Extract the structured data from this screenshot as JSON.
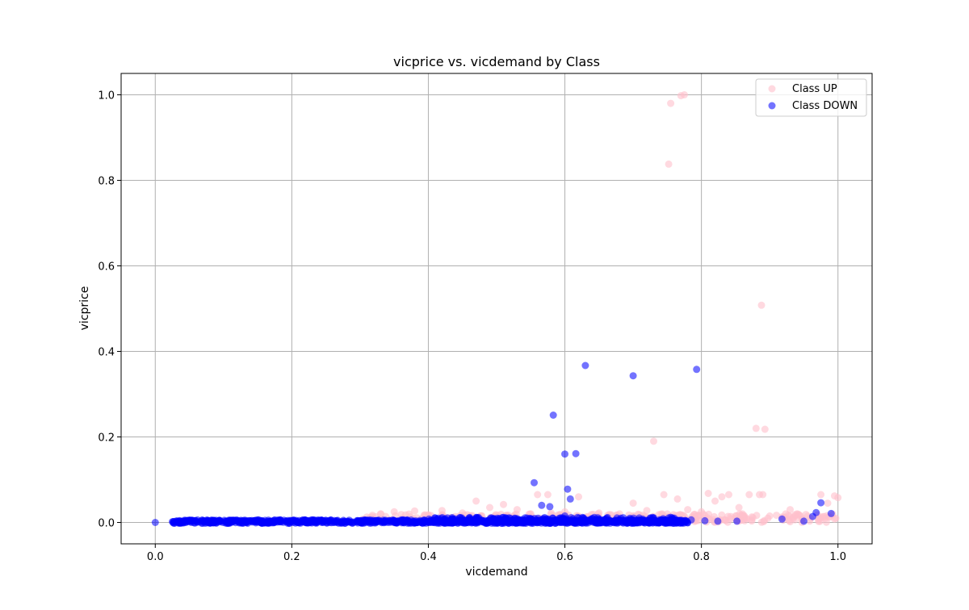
{
  "chart_data": {
    "type": "scatter",
    "title": "vicprice vs. vicdemand by Class",
    "xlabel": "vicdemand",
    "ylabel": "vicprice",
    "xlim": [
      -0.05,
      1.05
    ],
    "ylim": [
      -0.05,
      1.05
    ],
    "xticks": [
      0.0,
      0.2,
      0.4,
      0.6,
      0.8,
      1.0
    ],
    "xtick_labels": [
      "0.0",
      "0.2",
      "0.4",
      "0.6",
      "0.8",
      "1.0"
    ],
    "yticks": [
      0.0,
      0.2,
      0.4,
      0.6,
      0.8,
      1.0
    ],
    "ytick_labels": [
      "0.0",
      "0.2",
      "0.4",
      "0.6",
      "0.8",
      "1.0"
    ],
    "grid": true,
    "legend_position": "top-right",
    "series": [
      {
        "name": "Class UP",
        "color": "#ffc0cb",
        "alpha": 0.6,
        "points": [
          [
            0.755,
            0.98
          ],
          [
            0.77,
            0.998
          ],
          [
            0.775,
            1.0
          ],
          [
            0.752,
            0.838
          ],
          [
            0.888,
            0.508
          ],
          [
            0.88,
            0.22
          ],
          [
            0.893,
            0.218
          ],
          [
            0.73,
            0.19
          ],
          [
            0.47,
            0.05
          ],
          [
            0.51,
            0.042
          ],
          [
            0.56,
            0.065
          ],
          [
            0.575,
            0.065
          ],
          [
            0.62,
            0.06
          ],
          [
            0.7,
            0.045
          ],
          [
            0.745,
            0.065
          ],
          [
            0.765,
            0.055
          ],
          [
            0.81,
            0.068
          ],
          [
            0.82,
            0.05
          ],
          [
            0.83,
            0.06
          ],
          [
            0.84,
            0.065
          ],
          [
            0.855,
            0.035
          ],
          [
            0.87,
            0.065
          ],
          [
            0.885,
            0.065
          ],
          [
            0.89,
            0.065
          ],
          [
            0.93,
            0.03
          ],
          [
            0.975,
            0.065
          ],
          [
            0.985,
            0.045
          ],
          [
            0.995,
            0.062
          ],
          [
            1.0,
            0.058
          ],
          [
            0.35,
            0.025
          ],
          [
            0.38,
            0.027
          ],
          [
            0.42,
            0.028
          ],
          [
            0.45,
            0.022
          ],
          [
            0.49,
            0.035
          ],
          [
            0.53,
            0.03
          ],
          [
            0.6,
            0.025
          ],
          [
            0.65,
            0.022
          ],
          [
            0.72,
            0.028
          ],
          [
            0.78,
            0.03
          ],
          [
            0.8,
            0.025
          ],
          [
            0.86,
            0.02
          ],
          [
            0.9,
            0.015
          ],
          [
            0.92,
            0.012
          ],
          [
            0.94,
            0.02
          ],
          [
            0.96,
            0.01
          ],
          [
            0.97,
            0.018
          ],
          [
            0.33,
            0.02
          ],
          [
            0.4,
            0.018
          ],
          [
            0.55,
            0.02
          ],
          [
            0.58,
            0.022
          ],
          [
            0.68,
            0.02
          ],
          [
            0.75,
            0.02
          ],
          [
            0.85,
            0.015
          ]
        ]
      },
      {
        "name": "Class DOWN",
        "color": "#0000ff",
        "alpha": 0.55,
        "points": [
          [
            0.0,
            0.0
          ],
          [
            0.63,
            0.367
          ],
          [
            0.7,
            0.343
          ],
          [
            0.793,
            0.358
          ],
          [
            0.583,
            0.251
          ],
          [
            0.6,
            0.16
          ],
          [
            0.616,
            0.161
          ],
          [
            0.555,
            0.093
          ],
          [
            0.604,
            0.078
          ],
          [
            0.608,
            0.055
          ],
          [
            0.566,
            0.04
          ],
          [
            0.578,
            0.037
          ],
          [
            0.6,
            0.015
          ],
          [
            0.975,
            0.046
          ],
          [
            0.968,
            0.023
          ],
          [
            0.99,
            0.021
          ],
          [
            0.963,
            0.014
          ],
          [
            0.918,
            0.008
          ],
          [
            0.95,
            0.003
          ],
          [
            0.852,
            0.003
          ],
          [
            0.824,
            0.003
          ],
          [
            0.805,
            0.004
          ],
          [
            0.785,
            0.006
          ],
          [
            0.755,
            0.012
          ],
          [
            0.695,
            0.01
          ],
          [
            0.66,
            0.008
          ],
          [
            0.52,
            0.01
          ],
          [
            0.47,
            0.007
          ]
        ]
      }
    ],
    "bands": [
      {
        "series_index": 0,
        "x_range": [
          0.3,
          1.0
        ],
        "y_range": [
          0.0,
          0.02
        ],
        "count": 320
      },
      {
        "series_index": 1,
        "x_range": [
          0.025,
          0.78
        ],
        "y_range": [
          -0.002,
          0.006
        ],
        "count": 1100
      },
      {
        "series_index": 1,
        "x_range": [
          0.4,
          0.78
        ],
        "y_range": [
          0.0,
          0.012
        ],
        "count": 220
      }
    ]
  }
}
